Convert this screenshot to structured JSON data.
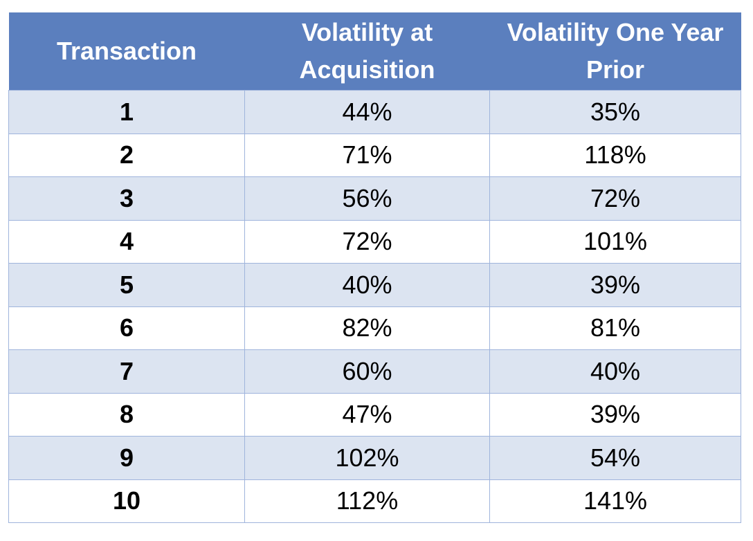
{
  "chart_data": {
    "type": "table",
    "columns": [
      "Transaction",
      "Volatility at Acquisition",
      "Volatility One Year Prior"
    ],
    "rows": [
      {
        "transaction": "1",
        "at_acquisition": "44%",
        "one_year_prior": "35%"
      },
      {
        "transaction": "2",
        "at_acquisition": "71%",
        "one_year_prior": "118%"
      },
      {
        "transaction": "3",
        "at_acquisition": "56%",
        "one_year_prior": "72%"
      },
      {
        "transaction": "4",
        "at_acquisition": "72%",
        "one_year_prior": "101%"
      },
      {
        "transaction": "5",
        "at_acquisition": "40%",
        "one_year_prior": "39%"
      },
      {
        "transaction": "6",
        "at_acquisition": "82%",
        "one_year_prior": "81%"
      },
      {
        "transaction": "7",
        "at_acquisition": "60%",
        "one_year_prior": "40%"
      },
      {
        "transaction": "8",
        "at_acquisition": "47%",
        "one_year_prior": "39%"
      },
      {
        "transaction": "9",
        "at_acquisition": "102%",
        "one_year_prior": "54%"
      },
      {
        "transaction": "10",
        "at_acquisition": "112%",
        "one_year_prior": "141%"
      }
    ]
  },
  "colors": {
    "header_bg": "#5b7fbe",
    "header_text": "#ffffff",
    "band_row": "#dce4f1",
    "plain_row": "#ffffff",
    "grid_line": "#9fb4dc"
  }
}
